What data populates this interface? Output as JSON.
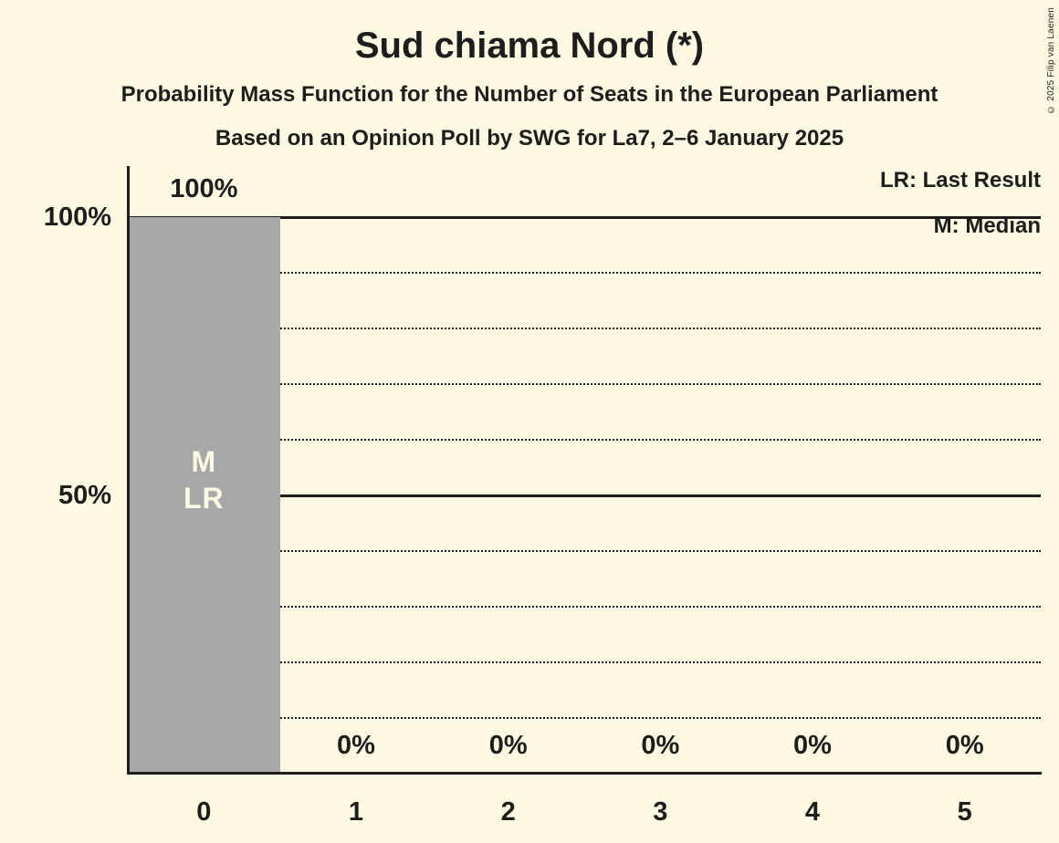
{
  "copyright": "© 2025 Filip van Laenen",
  "colors": {
    "background": "#FDF9E3",
    "bar": "#A8A8A8",
    "text": "#1D1D1B",
    "bar_annotation_text": "#FDF9E3"
  },
  "chart_data": {
    "type": "bar",
    "title": "Sud chiama Nord (*)",
    "subtitle": "Probability Mass Function for the Number of Seats in the European Parliament",
    "source_line": "Based on an Opinion Poll by SWG for La7, 2–6 January 2025",
    "categories": [
      "0",
      "1",
      "2",
      "3",
      "4",
      "5"
    ],
    "values": [
      100,
      0,
      0,
      0,
      0,
      0
    ],
    "value_labels": [
      "100%",
      "0%",
      "0%",
      "0%",
      "0%",
      "0%"
    ],
    "xlabel": "",
    "ylabel": "",
    "ylim": [
      0,
      109
    ],
    "y_axis_ticks": [
      {
        "value": 100,
        "label": "100%"
      },
      {
        "value": 50,
        "label": "50%"
      }
    ],
    "gridlines": {
      "solid": [
        100,
        50
      ],
      "dotted": [
        90,
        80,
        70,
        60,
        40,
        30,
        20,
        10
      ]
    },
    "grid": "horizontal",
    "legend_position": "top-right",
    "legend": [
      {
        "key": "LR",
        "label": "LR: Last Result"
      },
      {
        "key": "M",
        "label": "M: Median"
      }
    ],
    "bar_annotations": [
      {
        "category": "0",
        "lines": [
          "M",
          "LR"
        ]
      }
    ],
    "median_seats": 0,
    "last_result_seats": 0
  }
}
